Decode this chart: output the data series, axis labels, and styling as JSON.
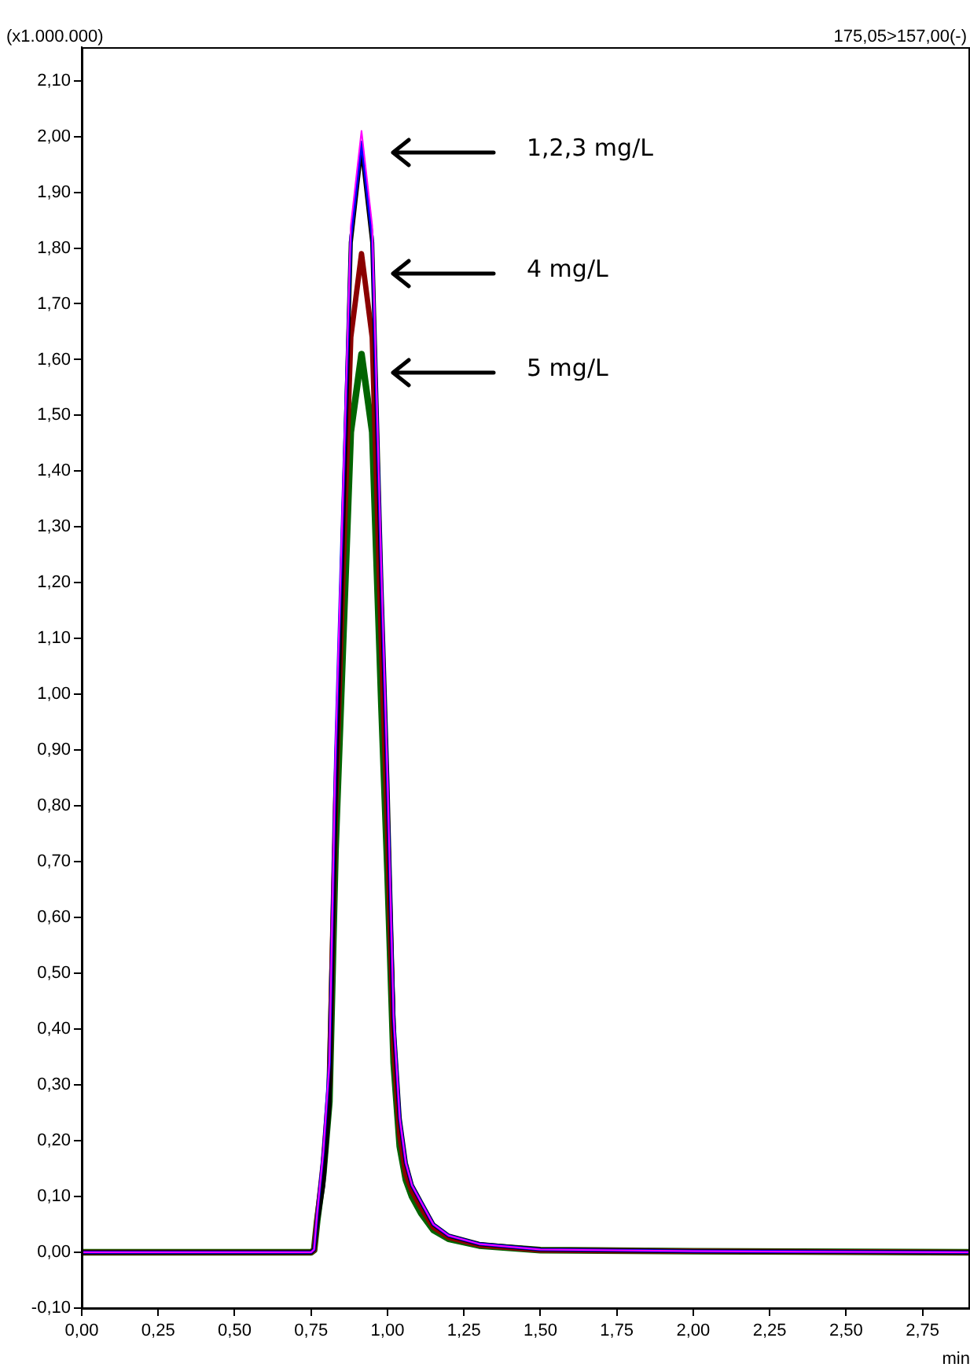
{
  "chart_data": {
    "type": "line",
    "subtitle": "175,05>157,00(-)",
    "xlabel": "min",
    "ylabel": "(x1.000.000)",
    "x": [
      0,
      0.5,
      0.75,
      0.76,
      0.77,
      0.79,
      0.81,
      0.83,
      0.85,
      0.88,
      0.915,
      0.95,
      0.98,
      1.0,
      1.02,
      1.04,
      1.06,
      1.08,
      1.11,
      1.15,
      1.2,
      1.3,
      1.5,
      2.0,
      2.9
    ],
    "series": [
      {
        "color": "#ff00ff",
        "values": [
          0,
          0,
          0,
          0.005,
          0.07,
          0.18,
          0.34,
          0.9,
          1.28,
          1.84,
          2.01,
          1.84,
          1.22,
          0.85,
          0.42,
          0.24,
          0.16,
          0.12,
          0.09,
          0.05,
          0.03,
          0.015,
          0.005,
          0.002,
          0
        ]
      },
      {
        "color": "#0000ff",
        "values": [
          0,
          0,
          0,
          0.005,
          0.07,
          0.18,
          0.34,
          0.89,
          1.27,
          1.82,
          1.99,
          1.82,
          1.21,
          0.84,
          0.42,
          0.24,
          0.16,
          0.12,
          0.09,
          0.05,
          0.03,
          0.015,
          0.005,
          0.002,
          0
        ]
      },
      {
        "color": "#000000",
        "values": [
          0,
          0,
          0,
          0.005,
          0.05,
          0.12,
          0.26,
          0.8,
          1.2,
          1.81,
          1.98,
          1.81,
          1.2,
          0.84,
          0.41,
          0.24,
          0.16,
          0.12,
          0.09,
          0.05,
          0.03,
          0.015,
          0.005,
          0.002,
          0
        ]
      },
      {
        "color": "#8b0000",
        "values": [
          0,
          0,
          0,
          0.004,
          0.06,
          0.16,
          0.3,
          0.8,
          1.14,
          1.64,
          1.79,
          1.64,
          1.09,
          0.76,
          0.37,
          0.21,
          0.14,
          0.11,
          0.08,
          0.045,
          0.027,
          0.013,
          0.004,
          0.002,
          0
        ]
      },
      {
        "color": "#006400",
        "values": [
          0,
          0,
          0,
          0.004,
          0.056,
          0.14,
          0.27,
          0.72,
          1.02,
          1.47,
          1.61,
          1.47,
          0.98,
          0.68,
          0.34,
          0.19,
          0.13,
          0.1,
          0.07,
          0.04,
          0.024,
          0.012,
          0.004,
          0.002,
          0
        ]
      }
    ],
    "xlim": [
      0,
      2.9
    ],
    "ylim": [
      -0.1,
      2.16
    ],
    "xticks": [
      {
        "value": 0,
        "label": "0,00"
      },
      {
        "value": 0.25,
        "label": "0,25"
      },
      {
        "value": 0.5,
        "label": "0,50"
      },
      {
        "value": 0.75,
        "label": "0,75"
      },
      {
        "value": 1,
        "label": "1,00"
      },
      {
        "value": 1.25,
        "label": "1,25"
      },
      {
        "value": 1.5,
        "label": "1,50"
      },
      {
        "value": 1.75,
        "label": "1,75"
      },
      {
        "value": 2,
        "label": "2,00"
      },
      {
        "value": 2.25,
        "label": "2,25"
      },
      {
        "value": 2.5,
        "label": "2,50"
      },
      {
        "value": 2.75,
        "label": "2,75"
      }
    ],
    "yticks": [
      {
        "value": -0.1,
        "label": "-0,10"
      },
      {
        "value": 0,
        "label": "0,00"
      },
      {
        "value": 0.1,
        "label": "0,10"
      },
      {
        "value": 0.2,
        "label": "0,20"
      },
      {
        "value": 0.3,
        "label": "0,30"
      },
      {
        "value": 0.4,
        "label": "0,40"
      },
      {
        "value": 0.5,
        "label": "0,50"
      },
      {
        "value": 0.6,
        "label": "0,60"
      },
      {
        "value": 0.7,
        "label": "0,70"
      },
      {
        "value": 0.8,
        "label": "0,80"
      },
      {
        "value": 0.9,
        "label": "0,90"
      },
      {
        "value": 1,
        "label": "1,00"
      },
      {
        "value": 1.1,
        "label": "1,10"
      },
      {
        "value": 1.2,
        "label": "1,20"
      },
      {
        "value": 1.3,
        "label": "1,30"
      },
      {
        "value": 1.4,
        "label": "1,40"
      },
      {
        "value": 1.5,
        "label": "1,50"
      },
      {
        "value": 1.6,
        "label": "1,60"
      },
      {
        "value": 1.7,
        "label": "1,70"
      },
      {
        "value": 1.8,
        "label": "1,80"
      },
      {
        "value": 1.9,
        "label": "1,90"
      },
      {
        "value": 2,
        "label": "2,00"
      },
      {
        "value": 2.1,
        "label": "2,10"
      }
    ],
    "annotations": [
      "1,2,3 mg/L",
      "4 mg/L",
      "5 mg/L"
    ],
    "grid": false,
    "legend": false,
    "marker": "none",
    "line_style": "solid"
  }
}
